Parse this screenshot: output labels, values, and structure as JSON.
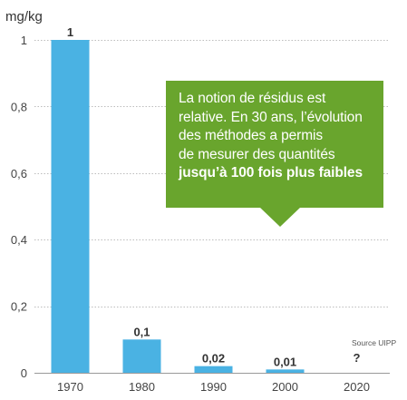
{
  "chart_data": {
    "type": "bar",
    "ylabel": "mg/kg",
    "ylim": [
      0,
      1
    ],
    "y_ticks": [
      "0",
      "0,2",
      "0,4",
      "0,6",
      "0,8",
      "1"
    ],
    "y_tick_values": [
      0,
      0.2,
      0.4,
      0.6,
      0.8,
      1
    ],
    "grid": true,
    "categories": [
      "1970",
      "1980",
      "1990",
      "2000",
      "2020"
    ],
    "values": [
      1,
      0.1,
      0.02,
      0.01,
      null
    ],
    "value_labels": [
      "1",
      "0,1",
      "0,02",
      "0,01",
      "?"
    ],
    "bar_color": "#4ab2e3",
    "source": "Source UIPP",
    "annotation": {
      "lines": [
        "La notion de résidus est",
        "relative. En 30 ans, l’évolution",
        "des méthodes a permis",
        "de mesurer des quantités"
      ],
      "emphasis": "jusqu’à 100 fois plus faibles",
      "background": "#69a52d",
      "text_color": "#ffffff"
    }
  }
}
